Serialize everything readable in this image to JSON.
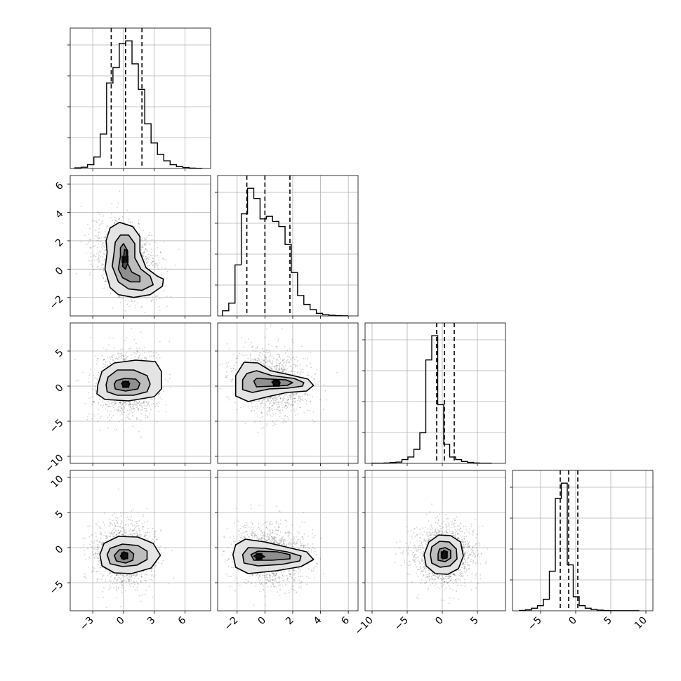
{
  "chart_data": {
    "type": "corner",
    "grid": true,
    "variables": [
      {
        "xlim": [
          -5.2,
          8.5
        ],
        "ticks": [
          -3,
          0,
          3,
          6
        ],
        "quantiles": [
          -1.2,
          0.2,
          1.8
        ]
      },
      {
        "xlim": [
          -3.4,
          6.7
        ],
        "ticks": [
          -2,
          0,
          2,
          4,
          6
        ],
        "quantiles": [
          -1.3,
          0.0,
          1.8
        ]
      },
      {
        "xlim": [
          -11.0,
          9.0
        ],
        "ticks": [
          -10,
          -5,
          0,
          5
        ],
        "quantiles": [
          -0.8,
          0.3,
          1.7
        ]
      },
      {
        "xlim": [
          -9.0,
          11.0
        ],
        "ticks": [
          -5,
          0,
          5,
          10
        ],
        "quantiles": [
          -2.2,
          -1.0,
          0.3
        ]
      }
    ],
    "histograms": [
      {
        "variable": 0,
        "bin_start": -4.75,
        "bin_width": 0.62,
        "counts": [
          0.5,
          1,
          3,
          9,
          27,
          67,
          79,
          98,
          100,
          82,
          62,
          35,
          20,
          11,
          6,
          3,
          1.5,
          0.8,
          0.3,
          0.1
        ]
      },
      {
        "variable": 1,
        "bin_start": -3.05,
        "bin_width": 0.45,
        "counts": [
          4,
          10,
          40,
          80,
          100,
          92,
          76,
          78,
          74,
          70,
          56,
          34,
          16,
          9,
          5,
          2,
          1,
          0.5,
          0.2,
          0.1
        ]
      },
      {
        "variable": 2,
        "bin_start": -10.0,
        "bin_width": 0.85,
        "counts": [
          0.1,
          0.1,
          0.3,
          0.7,
          1,
          3,
          5,
          11,
          24,
          81,
          100,
          46,
          15,
          5,
          3,
          1.5,
          0.8,
          0.3,
          0.1,
          0.1
        ]
      },
      {
        "variable": 3,
        "bin_start": -8.0,
        "bin_width": 0.85,
        "counts": [
          0.3,
          0.7,
          2,
          4,
          9,
          31,
          88,
          100,
          36,
          11,
          4,
          2,
          1,
          0.5,
          0.2,
          0.1,
          0.1,
          0.1,
          0.1,
          0.1
        ]
      }
    ],
    "pairs": [
      {
        "x": 0,
        "y": 1,
        "center": [
          0.3,
          0.7
        ],
        "sd": [
          1.5,
          1.3
        ],
        "rho": -0.3,
        "ylim": [
          -3.3,
          6.6
        ],
        "yticks": [
          -2,
          0,
          2,
          4,
          6
        ],
        "contours": [
          [
            [
              -1.6,
              1.2
            ],
            [
              -1.8,
              0.0
            ],
            [
              -1.3,
              -1.3
            ],
            [
              -0.5,
              -1.8
            ],
            [
              1.0,
              -2.0
            ],
            [
              2.6,
              -1.8
            ],
            [
              3.8,
              -1.2
            ],
            [
              3.9,
              -0.7
            ],
            [
              3.3,
              -0.5
            ],
            [
              2.2,
              0.1
            ],
            [
              1.6,
              1.2
            ],
            [
              1.6,
              2.3
            ],
            [
              0.9,
              3.0
            ],
            [
              -0.4,
              3.3
            ],
            [
              -1.3,
              2.9
            ],
            [
              -1.7,
              2.0
            ]
          ],
          [
            [
              -0.9,
              1.3
            ],
            [
              -1.1,
              0.2
            ],
            [
              -0.5,
              -0.9
            ],
            [
              0.5,
              -1.4
            ],
            [
              1.8,
              -1.5
            ],
            [
              2.9,
              -1.1
            ],
            [
              2.6,
              -0.5
            ],
            [
              1.7,
              0.0
            ],
            [
              1.1,
              0.8
            ],
            [
              1.1,
              1.8
            ],
            [
              0.5,
              2.4
            ],
            [
              -0.3,
              2.4
            ],
            [
              -0.8,
              1.9
            ]
          ],
          [
            [
              -0.3,
              0.9
            ],
            [
              -0.5,
              0.0
            ],
            [
              -0.1,
              -0.6
            ],
            [
              0.7,
              -0.9
            ],
            [
              1.6,
              -0.9
            ],
            [
              1.6,
              -0.5
            ],
            [
              0.8,
              -0.2
            ],
            [
              0.4,
              0.4
            ],
            [
              0.4,
              1.3
            ],
            [
              0.0,
              1.8
            ],
            [
              -0.3,
              1.5
            ]
          ],
          [
            [
              0.0,
              0.8
            ],
            [
              -0.1,
              0.2
            ],
            [
              0.2,
              0.0
            ],
            [
              0.4,
              0.4
            ],
            [
              0.3,
              1.3
            ],
            [
              0.1,
              1.4
            ]
          ]
        ]
      },
      {
        "x": 0,
        "y": 2,
        "center": [
          0.3,
          0.3
        ],
        "sd": [
          1.5,
          2.3
        ],
        "rho": 0.0,
        "ylim": [
          -11.0,
          9.0
        ],
        "yticks": [
          -10,
          -5,
          0,
          5
        ],
        "contours": [
          [
            [
              -2.5,
              0.2
            ],
            [
              -2.6,
              -1.1
            ],
            [
              -1.8,
              -1.9
            ],
            [
              0.5,
              -2.1
            ],
            [
              3.0,
              -1.5
            ],
            [
              3.7,
              -0.4
            ],
            [
              3.7,
              2.1
            ],
            [
              3.1,
              3.5
            ],
            [
              1.2,
              3.7
            ],
            [
              -0.9,
              3.3
            ],
            [
              -2.1,
              2.1
            ]
          ],
          [
            [
              -1.7,
              0.2
            ],
            [
              -1.6,
              -0.8
            ],
            [
              -0.6,
              -1.3
            ],
            [
              1.0,
              -1.3
            ],
            [
              2.3,
              -0.8
            ],
            [
              2.6,
              0.3
            ],
            [
              2.3,
              1.5
            ],
            [
              1.0,
              2.3
            ],
            [
              -0.6,
              2.3
            ],
            [
              -1.5,
              1.3
            ]
          ],
          [
            [
              -0.9,
              0.3
            ],
            [
              -0.8,
              -0.4
            ],
            [
              0.2,
              -0.7
            ],
            [
              1.4,
              -0.4
            ],
            [
              1.6,
              0.4
            ],
            [
              1.2,
              1.0
            ],
            [
              0.1,
              1.1
            ],
            [
              -0.7,
              0.8
            ]
          ],
          [
            [
              -0.2,
              0.4
            ],
            [
              0.0,
              -0.1
            ],
            [
              0.5,
              -0.1
            ],
            [
              0.6,
              0.4
            ],
            [
              0.2,
              0.7
            ]
          ]
        ]
      },
      {
        "x": 1,
        "y": 2,
        "center": [
          0.4,
          0.5
        ],
        "sd": [
          1.3,
          2.2
        ],
        "rho": -0.15,
        "ylim": [
          -11.0,
          9.0
        ],
        "yticks": [
          -10,
          -5,
          0,
          5
        ],
        "contours": [
          [
            [
              -2.1,
              1.5
            ],
            [
              -2.1,
              -1.4
            ],
            [
              -1.2,
              -2.2
            ],
            [
              0.2,
              -1.5
            ],
            [
              1.6,
              -0.9
            ],
            [
              3.0,
              -0.7
            ],
            [
              3.5,
              0.1
            ],
            [
              3.1,
              1.0
            ],
            [
              1.8,
              1.6
            ],
            [
              0.4,
              2.2
            ],
            [
              -0.5,
              3.3
            ],
            [
              -1.5,
              3.4
            ]
          ],
          [
            [
              -1.6,
              0.9
            ],
            [
              -1.6,
              -0.5
            ],
            [
              -0.9,
              -0.9
            ],
            [
              0.3,
              -0.4
            ],
            [
              1.6,
              -0.3
            ],
            [
              2.7,
              0.0
            ],
            [
              2.8,
              0.5
            ],
            [
              2.1,
              1.1
            ],
            [
              0.5,
              1.5
            ],
            [
              -0.6,
              2.2
            ],
            [
              -1.3,
              1.8
            ]
          ],
          [
            [
              -0.8,
              0.7
            ],
            [
              -0.6,
              -0.1
            ],
            [
              0.6,
              0.0
            ],
            [
              1.6,
              0.1
            ],
            [
              2.0,
              0.5
            ],
            [
              1.5,
              0.9
            ],
            [
              0.4,
              1.0
            ],
            [
              -0.6,
              1.1
            ]
          ],
          [
            [
              0.5,
              0.6
            ],
            [
              0.7,
              0.1
            ],
            [
              1.0,
              0.1
            ],
            [
              1.1,
              0.5
            ],
            [
              0.8,
              0.8
            ]
          ]
        ]
      },
      {
        "x": 0,
        "y": 3,
        "center": [
          0.2,
          -1.0
        ],
        "sd": [
          1.5,
          2.3
        ],
        "rho": 0.0,
        "ylim": [
          -9.0,
          11.0
        ],
        "yticks": [
          -5,
          0,
          5,
          10
        ],
        "contours": [
          [
            [
              -2.3,
              -1.0
            ],
            [
              -2.1,
              -2.6
            ],
            [
              -0.9,
              -3.6
            ],
            [
              0.8,
              -3.7
            ],
            [
              2.7,
              -2.9
            ],
            [
              3.6,
              -1.1
            ],
            [
              2.9,
              0.6
            ],
            [
              1.4,
              1.5
            ],
            [
              -0.5,
              1.6
            ],
            [
              -1.9,
              0.6
            ]
          ],
          [
            [
              -1.6,
              -1.0
            ],
            [
              -1.3,
              -2.3
            ],
            [
              -0.1,
              -2.7
            ],
            [
              1.3,
              -2.5
            ],
            [
              2.3,
              -1.7
            ],
            [
              2.3,
              -0.5
            ],
            [
              1.4,
              0.3
            ],
            [
              -0.1,
              0.5
            ],
            [
              -1.3,
              -0.1
            ]
          ],
          [
            [
              -0.9,
              -1.1
            ],
            [
              -0.7,
              -1.9
            ],
            [
              0.2,
              -2.2
            ],
            [
              0.9,
              -1.8
            ],
            [
              1.0,
              -0.9
            ],
            [
              0.5,
              -0.3
            ],
            [
              -0.4,
              -0.3
            ]
          ],
          [
            [
              -0.3,
              -1.2
            ],
            [
              0.0,
              -1.7
            ],
            [
              0.4,
              -1.5
            ],
            [
              0.4,
              -0.8
            ],
            [
              0.0,
              -0.6
            ]
          ]
        ]
      },
      {
        "x": 1,
        "y": 3,
        "center": [
          0.3,
          -1.0
        ],
        "sd": [
          1.3,
          2.2
        ],
        "rho": -0.1,
        "ylim": [
          -9.0,
          11.0
        ],
        "yticks": [
          -5,
          0,
          5,
          10
        ],
        "contours": [
          [
            [
              -2.3,
              -1.0
            ],
            [
              -2.1,
              -2.8
            ],
            [
              -1.2,
              -3.7
            ],
            [
              0.8,
              -3.3
            ],
            [
              2.6,
              -2.7
            ],
            [
              3.5,
              -1.7
            ],
            [
              3.0,
              -0.6
            ],
            [
              1.7,
              0.0
            ],
            [
              0.0,
              0.8
            ],
            [
              -1.4,
              1.2
            ],
            [
              -2.1,
              0.4
            ]
          ],
          [
            [
              -1.6,
              -1.0
            ],
            [
              -1.5,
              -2.2
            ],
            [
              -0.5,
              -2.6
            ],
            [
              1.2,
              -2.4
            ],
            [
              2.5,
              -1.9
            ],
            [
              2.6,
              -1.2
            ],
            [
              1.6,
              -0.6
            ],
            [
              0.0,
              -0.1
            ],
            [
              -1.2,
              0.0
            ]
          ],
          [
            [
              -1.0,
              -1.0
            ],
            [
              -0.8,
              -1.8
            ],
            [
              0.5,
              -1.8
            ],
            [
              1.8,
              -1.6
            ],
            [
              1.8,
              -1.0
            ],
            [
              0.9,
              -0.6
            ],
            [
              -0.5,
              -0.5
            ]
          ],
          [
            [
              -0.8,
              -1.2
            ],
            [
              -0.5,
              -1.6
            ],
            [
              0.0,
              -1.3
            ],
            [
              -0.4,
              -0.9
            ]
          ]
        ]
      },
      {
        "x": 2,
        "y": 3,
        "center": [
          0.3,
          -1.0
        ],
        "sd": [
          2.1,
          2.1
        ],
        "rho": 0.0,
        "ylim": [
          -9.0,
          11.0
        ],
        "yticks": [
          -5,
          0,
          5,
          10
        ],
        "contours": [
          [
            [
              -2.6,
              -1.0
            ],
            [
              -2.3,
              -2.6
            ],
            [
              -1.0,
              -3.7
            ],
            [
              0.8,
              -3.8
            ],
            [
              2.3,
              -3.0
            ],
            [
              3.0,
              -1.2
            ],
            [
              2.6,
              0.8
            ],
            [
              1.2,
              1.7
            ],
            [
              -0.5,
              1.8
            ],
            [
              -1.9,
              0.8
            ]
          ],
          [
            [
              -1.7,
              -1.0
            ],
            [
              -1.5,
              -2.2
            ],
            [
              -0.3,
              -2.8
            ],
            [
              1.1,
              -2.6
            ],
            [
              2.1,
              -1.6
            ],
            [
              2.0,
              -0.2
            ],
            [
              1.0,
              0.8
            ],
            [
              -0.4,
              0.9
            ],
            [
              -1.5,
              0.1
            ]
          ],
          [
            [
              -0.6,
              -0.9
            ],
            [
              -0.6,
              -1.8
            ],
            [
              0.4,
              -2.0
            ],
            [
              1.2,
              -1.5
            ],
            [
              1.2,
              -0.4
            ],
            [
              0.4,
              0.0
            ],
            [
              -0.4,
              -0.2
            ]
          ],
          [
            [
              -0.1,
              -1.0
            ],
            [
              0.0,
              -1.6
            ],
            [
              0.6,
              -1.5
            ],
            [
              0.7,
              -0.6
            ],
            [
              0.2,
              -0.4
            ]
          ]
        ]
      }
    ]
  }
}
